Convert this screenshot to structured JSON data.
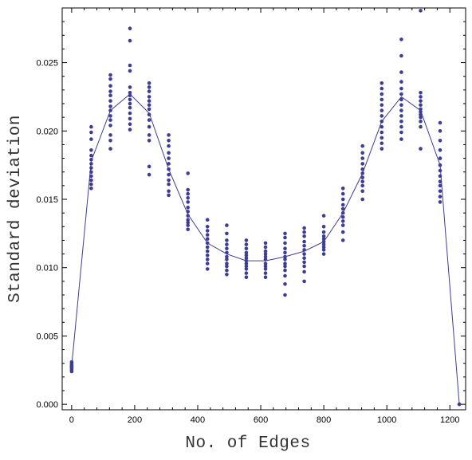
{
  "chart_data": {
    "type": "scatter",
    "xlabel": "No. of Edges",
    "ylabel": "Standard deviation",
    "xlim": [
      -30,
      1250
    ],
    "ylim": [
      -0.0004,
      0.029
    ],
    "xticks": [
      0,
      200,
      400,
      600,
      800,
      1000,
      1200
    ],
    "yticks": [
      0.0,
      0.005,
      0.01,
      0.015,
      0.02,
      0.025
    ],
    "ytick_labels": [
      "0.000",
      "0.005",
      "0.010",
      "0.015",
      "0.020",
      "0.025"
    ],
    "grid": false,
    "colors": {
      "points": "#3d3d94",
      "line": "#3d3d94",
      "frame": "#000000"
    },
    "scatter": [
      {
        "x": 0,
        "y": [
          0.0024,
          0.0025,
          0.0026,
          0.0027,
          0.0028,
          0.0029,
          0.003,
          0.0031,
          0.0027,
          0.0028
        ]
      },
      {
        "x": 62,
        "y": [
          0.0158,
          0.0161,
          0.0164,
          0.0167,
          0.017,
          0.0173,
          0.0176,
          0.0179,
          0.0182,
          0.0186,
          0.0194,
          0.0199,
          0.0203
        ]
      },
      {
        "x": 123,
        "y": [
          0.0187,
          0.0193,
          0.0197,
          0.0204,
          0.0208,
          0.0211,
          0.0215,
          0.0218,
          0.0222,
          0.0226,
          0.0229,
          0.0233,
          0.0238,
          0.0241
        ]
      },
      {
        "x": 185,
        "y": [
          0.0201,
          0.0205,
          0.0209,
          0.0213,
          0.0217,
          0.022,
          0.0223,
          0.0226,
          0.0228,
          0.0232,
          0.0244,
          0.0248,
          0.0266,
          0.0275
        ]
      },
      {
        "x": 246,
        "y": [
          0.0168,
          0.0174,
          0.0193,
          0.0197,
          0.0203,
          0.0208,
          0.0212,
          0.0216,
          0.0219,
          0.0222,
          0.0225,
          0.0229,
          0.0232,
          0.0235
        ]
      },
      {
        "x": 308,
        "y": [
          0.0153,
          0.0156,
          0.0161,
          0.0164,
          0.0168,
          0.0172,
          0.0176,
          0.018,
          0.0184,
          0.0189,
          0.0193,
          0.0197
        ]
      },
      {
        "x": 369,
        "y": [
          0.0128,
          0.0131,
          0.0133,
          0.0135,
          0.0138,
          0.0141,
          0.0144,
          0.0148,
          0.0151,
          0.0154,
          0.0157,
          0.0169
        ]
      },
      {
        "x": 431,
        "y": [
          0.0099,
          0.0103,
          0.0106,
          0.0109,
          0.0112,
          0.0115,
          0.0118,
          0.0121,
          0.0124,
          0.0127,
          0.013,
          0.0135
        ]
      },
      {
        "x": 492,
        "y": [
          0.0095,
          0.0098,
          0.0101,
          0.0103,
          0.0106,
          0.0108,
          0.0111,
          0.0114,
          0.0117,
          0.012,
          0.0125,
          0.0131
        ]
      },
      {
        "x": 554,
        "y": [
          0.0093,
          0.0096,
          0.0099,
          0.0101,
          0.0103,
          0.0105,
          0.0107,
          0.0109,
          0.0111,
          0.0114,
          0.0117,
          0.012
        ]
      },
      {
        "x": 615,
        "y": [
          0.0093,
          0.0096,
          0.0099,
          0.0101,
          0.0103,
          0.0106,
          0.0108,
          0.011,
          0.0112,
          0.0115,
          0.0118
        ]
      },
      {
        "x": 677,
        "y": [
          0.008,
          0.0088,
          0.0094,
          0.0098,
          0.0101,
          0.0103,
          0.0106,
          0.0108,
          0.0111,
          0.0114,
          0.0118,
          0.0122,
          0.0125
        ]
      },
      {
        "x": 738,
        "y": [
          0.009,
          0.0097,
          0.0101,
          0.0104,
          0.0107,
          0.011,
          0.0113,
          0.0116,
          0.0119,
          0.0123,
          0.0126,
          0.0129
        ]
      },
      {
        "x": 800,
        "y": [
          0.011,
          0.0113,
          0.0115,
          0.0117,
          0.0119,
          0.0121,
          0.0123,
          0.0126,
          0.013,
          0.0138
        ]
      },
      {
        "x": 861,
        "y": [
          0.012,
          0.0126,
          0.0131,
          0.0134,
          0.0137,
          0.014,
          0.0143,
          0.0146,
          0.015,
          0.0154,
          0.0158
        ]
      },
      {
        "x": 923,
        "y": [
          0.015,
          0.0156,
          0.016,
          0.0163,
          0.0166,
          0.0169,
          0.0172,
          0.0176,
          0.018,
          0.0184,
          0.0189
        ]
      },
      {
        "x": 984,
        "y": [
          0.0187,
          0.0191,
          0.0195,
          0.0199,
          0.0203,
          0.0207,
          0.0211,
          0.0215,
          0.0219,
          0.0223,
          0.0227,
          0.0231,
          0.0235
        ]
      },
      {
        "x": 1046,
        "y": [
          0.0194,
          0.0199,
          0.0203,
          0.0207,
          0.0211,
          0.0215,
          0.0219,
          0.0223,
          0.0227,
          0.0231,
          0.0236,
          0.0243,
          0.0255,
          0.0267
        ]
      },
      {
        "x": 1107,
        "y": [
          0.0187,
          0.0203,
          0.0207,
          0.021,
          0.0212,
          0.0214,
          0.0216,
          0.0219,
          0.0222,
          0.0225,
          0.0228,
          0.0288
        ]
      },
      {
        "x": 1169,
        "y": [
          0.0148,
          0.0152,
          0.0156,
          0.016,
          0.0163,
          0.0167,
          0.0171,
          0.0175,
          0.018,
          0.0186,
          0.0193,
          0.02,
          0.0206
        ]
      },
      {
        "x": 1230,
        "y": [
          0.0,
          0.0
        ]
      }
    ],
    "line": {
      "x": [
        0,
        62,
        123,
        185,
        246,
        308,
        369,
        431,
        492,
        554,
        615,
        677,
        738,
        800,
        861,
        923,
        984,
        1046,
        1107,
        1169,
        1230
      ],
      "y": [
        0.0028,
        0.0178,
        0.0215,
        0.0227,
        0.0213,
        0.0172,
        0.0139,
        0.0118,
        0.011,
        0.0105,
        0.0105,
        0.0108,
        0.0112,
        0.0119,
        0.014,
        0.0169,
        0.0207,
        0.0225,
        0.0215,
        0.0175,
        0.0
      ]
    }
  }
}
